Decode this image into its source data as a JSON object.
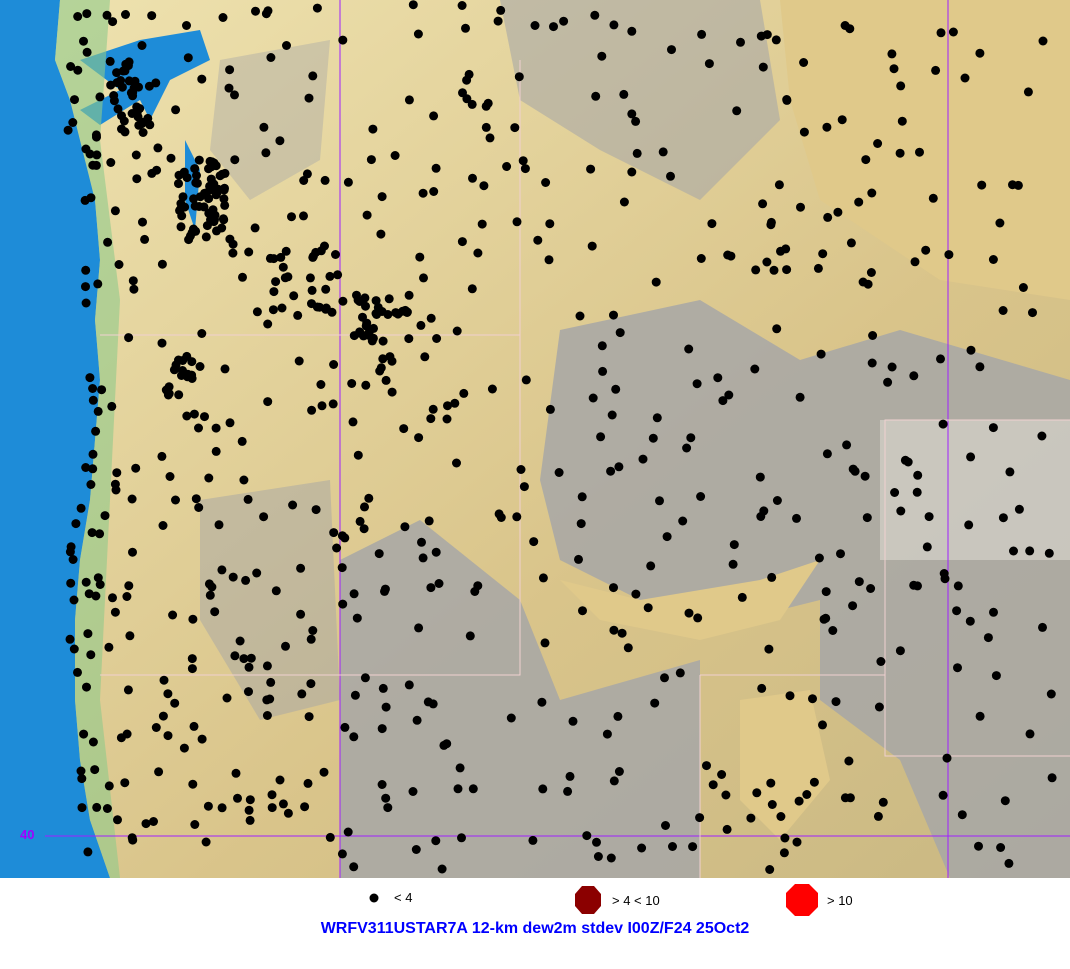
{
  "map": {
    "gridline_color": "#a020ff",
    "latitude_label": "40",
    "ocean_color": "#1e8cd8",
    "land_low_color": "#e6d39a",
    "land_high_color": "#a0a0a0",
    "station_marker_color": "#000000"
  },
  "legend": [
    {
      "label": "< 4",
      "color": "#000000",
      "icon": "small-dot-icon"
    },
    {
      "label": "> 4 < 10",
      "color": "#8b0000",
      "icon": "octagon-icon"
    },
    {
      "label": "> 10",
      "color": "#ff0000",
      "icon": "octagon-icon"
    }
  ],
  "title": "WRFV311USTAR7A 12-km dew2m stdev I00Z/F24 25Oct2"
}
